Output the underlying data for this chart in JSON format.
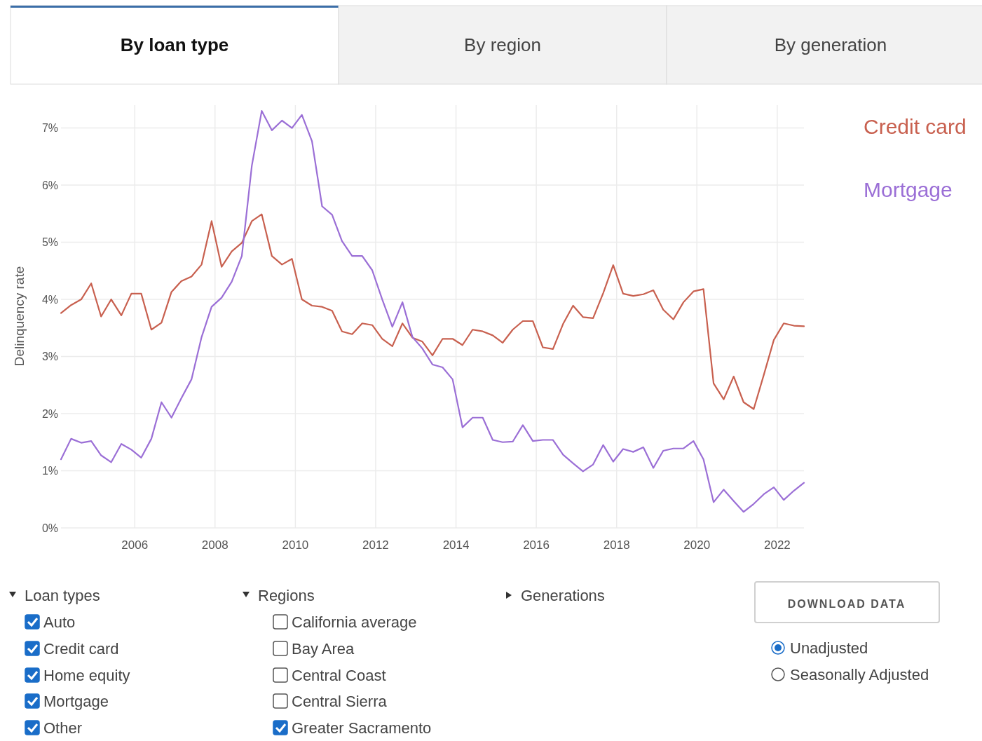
{
  "chart_data": [
    {
      "type": "line",
      "ylabel": "Delinquency rate",
      "x": [
        "2004-03",
        "2004-06",
        "2004-09",
        "2004-12",
        "2005-03",
        "2005-06",
        "2005-09",
        "2005-12",
        "2006-03",
        "2006-06",
        "2006-09",
        "2006-12",
        "2007-03",
        "2007-06",
        "2007-09",
        "2007-12",
        "2008-03",
        "2008-06",
        "2008-09",
        "2008-12",
        "2009-03",
        "2009-06",
        "2009-09",
        "2009-12",
        "2010-03",
        "2010-06",
        "2010-09",
        "2010-12",
        "2011-03",
        "2011-06",
        "2011-09",
        "2011-12",
        "2012-03",
        "2012-06",
        "2012-09",
        "2012-12",
        "2013-03",
        "2013-06",
        "2013-09",
        "2013-12",
        "2014-03",
        "2014-06",
        "2014-09",
        "2014-12",
        "2015-03",
        "2015-06",
        "2015-09",
        "2015-12",
        "2016-03",
        "2016-06",
        "2016-09",
        "2016-12",
        "2017-03",
        "2017-06",
        "2017-09",
        "2017-12",
        "2018-03",
        "2018-06",
        "2018-09",
        "2018-12",
        "2019-03",
        "2019-06",
        "2019-09",
        "2019-12",
        "2020-03",
        "2020-06",
        "2020-09",
        "2020-12",
        "2021-03",
        "2021-06",
        "2021-09",
        "2021-12",
        "2022-03",
        "2022-06",
        "2022-09"
      ],
      "series": [
        {
          "name": "Credit card",
          "color": "#c8604f",
          "values": [
            3.76,
            3.9,
            4.0,
            4.28,
            3.7,
            4.0,
            3.72,
            4.1,
            4.1,
            3.47,
            3.59,
            4.13,
            4.32,
            4.4,
            4.61,
            5.37,
            4.57,
            4.84,
            4.99,
            5.37,
            5.49,
            4.76,
            4.61,
            4.71,
            4.0,
            3.89,
            3.87,
            3.8,
            3.44,
            3.39,
            3.58,
            3.55,
            3.31,
            3.18,
            3.58,
            3.33,
            3.26,
            3.02,
            3.31,
            3.31,
            3.2,
            3.47,
            3.44,
            3.37,
            3.24,
            3.47,
            3.62,
            3.62,
            3.16,
            3.13,
            3.57,
            3.89,
            3.69,
            3.67,
            4.11,
            4.6,
            4.1,
            4.06,
            4.09,
            4.16,
            3.82,
            3.65,
            3.95,
            4.14,
            4.18,
            2.53,
            2.25,
            2.65,
            2.2,
            2.08,
            2.68,
            3.29,
            3.58,
            3.54,
            3.53
          ]
        },
        {
          "name": "Mortgage",
          "color": "#9b6fd6",
          "values": [
            1.2,
            1.56,
            1.49,
            1.52,
            1.27,
            1.15,
            1.47,
            1.37,
            1.23,
            1.56,
            2.2,
            1.93,
            2.27,
            2.6,
            3.34,
            3.87,
            4.03,
            4.31,
            4.76,
            6.34,
            7.3,
            6.96,
            7.13,
            7.0,
            7.23,
            6.77,
            5.63,
            5.48,
            5.02,
            4.76,
            4.76,
            4.51,
            4.0,
            3.52,
            3.95,
            3.34,
            3.14,
            2.86,
            2.81,
            2.6,
            1.76,
            1.93,
            1.93,
            1.54,
            1.5,
            1.51,
            1.8,
            1.52,
            1.54,
            1.54,
            1.28,
            1.13,
            0.99,
            1.11,
            1.45,
            1.16,
            1.38,
            1.33,
            1.41,
            1.05,
            1.35,
            1.39,
            1.39,
            1.52,
            1.2,
            0.45,
            0.67,
            0.47,
            0.28,
            0.42,
            0.59,
            0.71,
            0.49,
            0.65,
            0.79
          ]
        }
      ],
      "xlim": [
        "2004-03",
        "2022-09"
      ],
      "xticks": [
        "2006",
        "2008",
        "2010",
        "2012",
        "2014",
        "2016",
        "2018",
        "2020",
        "2022"
      ],
      "ylim": [
        0,
        7.4
      ],
      "yticks": [
        {
          "value": 0,
          "label": "0%"
        },
        {
          "value": 1,
          "label": "1%"
        },
        {
          "value": 2,
          "label": "2%"
        },
        {
          "value": 3,
          "label": "3%"
        },
        {
          "value": 4,
          "label": "4%"
        },
        {
          "value": 5,
          "label": "5%"
        },
        {
          "value": 6,
          "label": "6%"
        },
        {
          "value": 7,
          "label": "7%"
        }
      ],
      "grid": true,
      "legend": "top right"
    },
    {
      "type": "other",
      "annotations": [
        "By loan type",
        "By region",
        "By generation",
        "Loan types",
        "Auto",
        "Credit card",
        "Home equity",
        "Mortgage",
        "Other",
        "Regions",
        "California average",
        "Bay Area",
        "Central Coast",
        "Central Sierra",
        "Greater Sacramento",
        "Generations",
        "DOWNLOAD DATA",
        "Unadjusted",
        "Seasonally Adjusted"
      ]
    }
  ]
}
